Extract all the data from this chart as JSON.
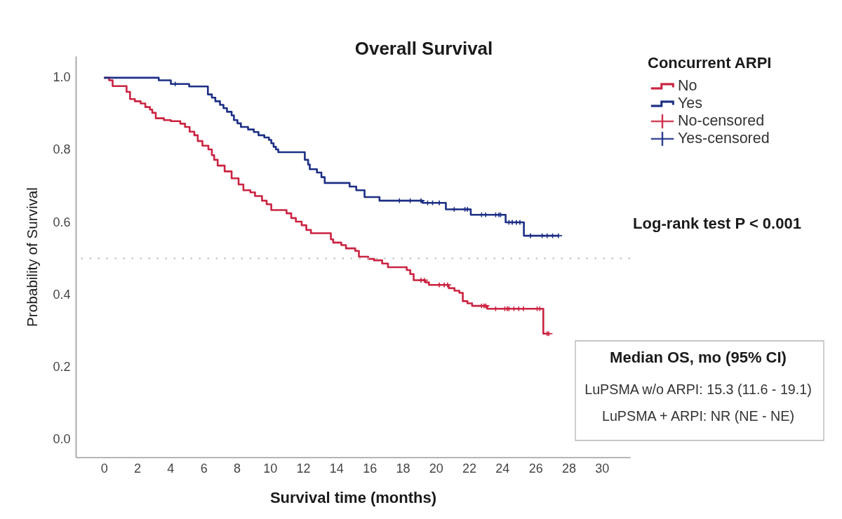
{
  "chart_data": {
    "type": "step",
    "title": "Overall Survival",
    "xlabel": "Survival time (months)",
    "ylabel": "Probability of Survival",
    "legend_title": "Concurrent ARPI",
    "legend": "top right",
    "grid": false,
    "xlim": [
      -1.7,
      31.7
    ],
    "xticks": [
      0,
      2,
      4,
      6,
      8,
      10,
      12,
      14,
      16,
      18,
      20,
      22,
      24,
      26,
      28,
      30
    ],
    "ylim": [
      -0.05,
      1.06
    ],
    "yticks": [
      {
        "value": 0,
        "label": "0.0"
      },
      0.2,
      0.4,
      0.6,
      0.8,
      {
        "value": 1,
        "label": "1.0"
      }
    ],
    "ref_lines": [
      {
        "axis": "y",
        "value": 0.5,
        "color": "#bdbdbd",
        "line_style": "dotted"
      }
    ],
    "annotations": [
      "Log-rank test P < 0.001",
      "Median OS, mo (95% CI)",
      "LuPSMA w/o ARPI: 15.3 (11.6 - 19.1)",
      "LuPSMA + ARPI: NR (NE - NE)"
    ],
    "series": [
      {
        "name": "No",
        "color": "#cb2341",
        "x": [
          0,
          0.31,
          0.52,
          1.36,
          1.57,
          1.86,
          2.21,
          2.49,
          2.77,
          2.91,
          3.12,
          3.61,
          4.03,
          4.6,
          4.88,
          5.16,
          5.44,
          5.65,
          5.93,
          6.29,
          6.5,
          6.64,
          6.85,
          7.27,
          7.69,
          8.11,
          8.4,
          8.82,
          9.1,
          9.52,
          9.8,
          10.08,
          11.0,
          11.28,
          11.56,
          11.91,
          12.19,
          12.47,
          13.67,
          13.81,
          14.3,
          14.58,
          15.14,
          15.36,
          15.92,
          16.27,
          16.76,
          17.11,
          18.24,
          18.45,
          18.66,
          19.37,
          19.58,
          20.77,
          21.12,
          21.41,
          21.62,
          21.9,
          22.18,
          23.09,
          26.47,
          26.8
        ],
        "values": [
          1.0,
          0.993,
          0.977,
          0.961,
          0.941,
          0.935,
          0.929,
          0.919,
          0.912,
          0.903,
          0.888,
          0.883,
          0.88,
          0.873,
          0.864,
          0.851,
          0.841,
          0.825,
          0.812,
          0.802,
          0.786,
          0.773,
          0.757,
          0.741,
          0.722,
          0.705,
          0.689,
          0.683,
          0.673,
          0.66,
          0.65,
          0.634,
          0.625,
          0.612,
          0.602,
          0.592,
          0.579,
          0.57,
          0.553,
          0.544,
          0.537,
          0.528,
          0.521,
          0.505,
          0.499,
          0.495,
          0.486,
          0.476,
          0.468,
          0.457,
          0.44,
          0.434,
          0.427,
          0.418,
          0.411,
          0.405,
          0.382,
          0.376,
          0.369,
          0.361,
          0.292,
          0.292
        ]
      },
      {
        "name": "Yes",
        "color": "#1d2f85",
        "x": [
          0,
          3.3,
          4.03,
          5.13,
          6.26,
          6.5,
          6.71,
          6.99,
          7.2,
          7.41,
          7.69,
          7.83,
          8.04,
          8.25,
          8.68,
          9.03,
          9.31,
          9.66,
          9.94,
          10.08,
          10.22,
          10.36,
          10.5,
          12.1,
          12.3,
          12.4,
          12.83,
          13.1,
          13.3,
          14.8,
          15.2,
          15.7,
          16.6,
          19.2,
          20.6,
          22.1,
          24.2,
          25.3,
          27.4
        ],
        "values": [
          1.0,
          0.993,
          0.983,
          0.976,
          0.954,
          0.945,
          0.935,
          0.925,
          0.916,
          0.906,
          0.896,
          0.883,
          0.874,
          0.864,
          0.857,
          0.85,
          0.841,
          0.835,
          0.828,
          0.819,
          0.809,
          0.802,
          0.794,
          0.773,
          0.76,
          0.747,
          0.738,
          0.725,
          0.709,
          0.699,
          0.689,
          0.67,
          0.66,
          0.654,
          0.636,
          0.621,
          0.6,
          0.563,
          0.563
        ]
      },
      {
        "name": "No-censored",
        "type": "scatter",
        "marker": "cross",
        "color": "#cb2341",
        "x": [
          19.1,
          19.3,
          20.2,
          20.5,
          20.7,
          22.75,
          22.9,
          23.0,
          23.6,
          24.15,
          24.3,
          24.4,
          24.7,
          24.99,
          25.27,
          26.1,
          26.26,
          26.7,
          26.8
        ],
        "values": [
          0.44,
          0.44,
          0.427,
          0.427,
          0.427,
          0.369,
          0.369,
          0.369,
          0.361,
          0.361,
          0.361,
          0.361,
          0.361,
          0.361,
          0.361,
          0.361,
          0.361,
          0.292,
          0.292
        ]
      },
      {
        "name": "Yes-censored",
        "type": "scatter",
        "marker": "cross",
        "color": "#1d2f85",
        "x": [
          4.29,
          17.8,
          18.45,
          19.1,
          19.5,
          19.8,
          20.2,
          21.1,
          21.75,
          21.9,
          22.75,
          23.0,
          23.6,
          23.8,
          23.9,
          24.4,
          24.6,
          24.85,
          25.06,
          25.7,
          26.4,
          26.7,
          27.03,
          27.38
        ],
        "values": [
          0.983,
          0.66,
          0.66,
          0.66,
          0.654,
          0.654,
          0.654,
          0.636,
          0.636,
          0.636,
          0.621,
          0.621,
          0.621,
          0.621,
          0.621,
          0.6,
          0.6,
          0.6,
          0.6,
          0.563,
          0.563,
          0.563,
          0.563,
          0.563
        ]
      }
    ]
  }
}
